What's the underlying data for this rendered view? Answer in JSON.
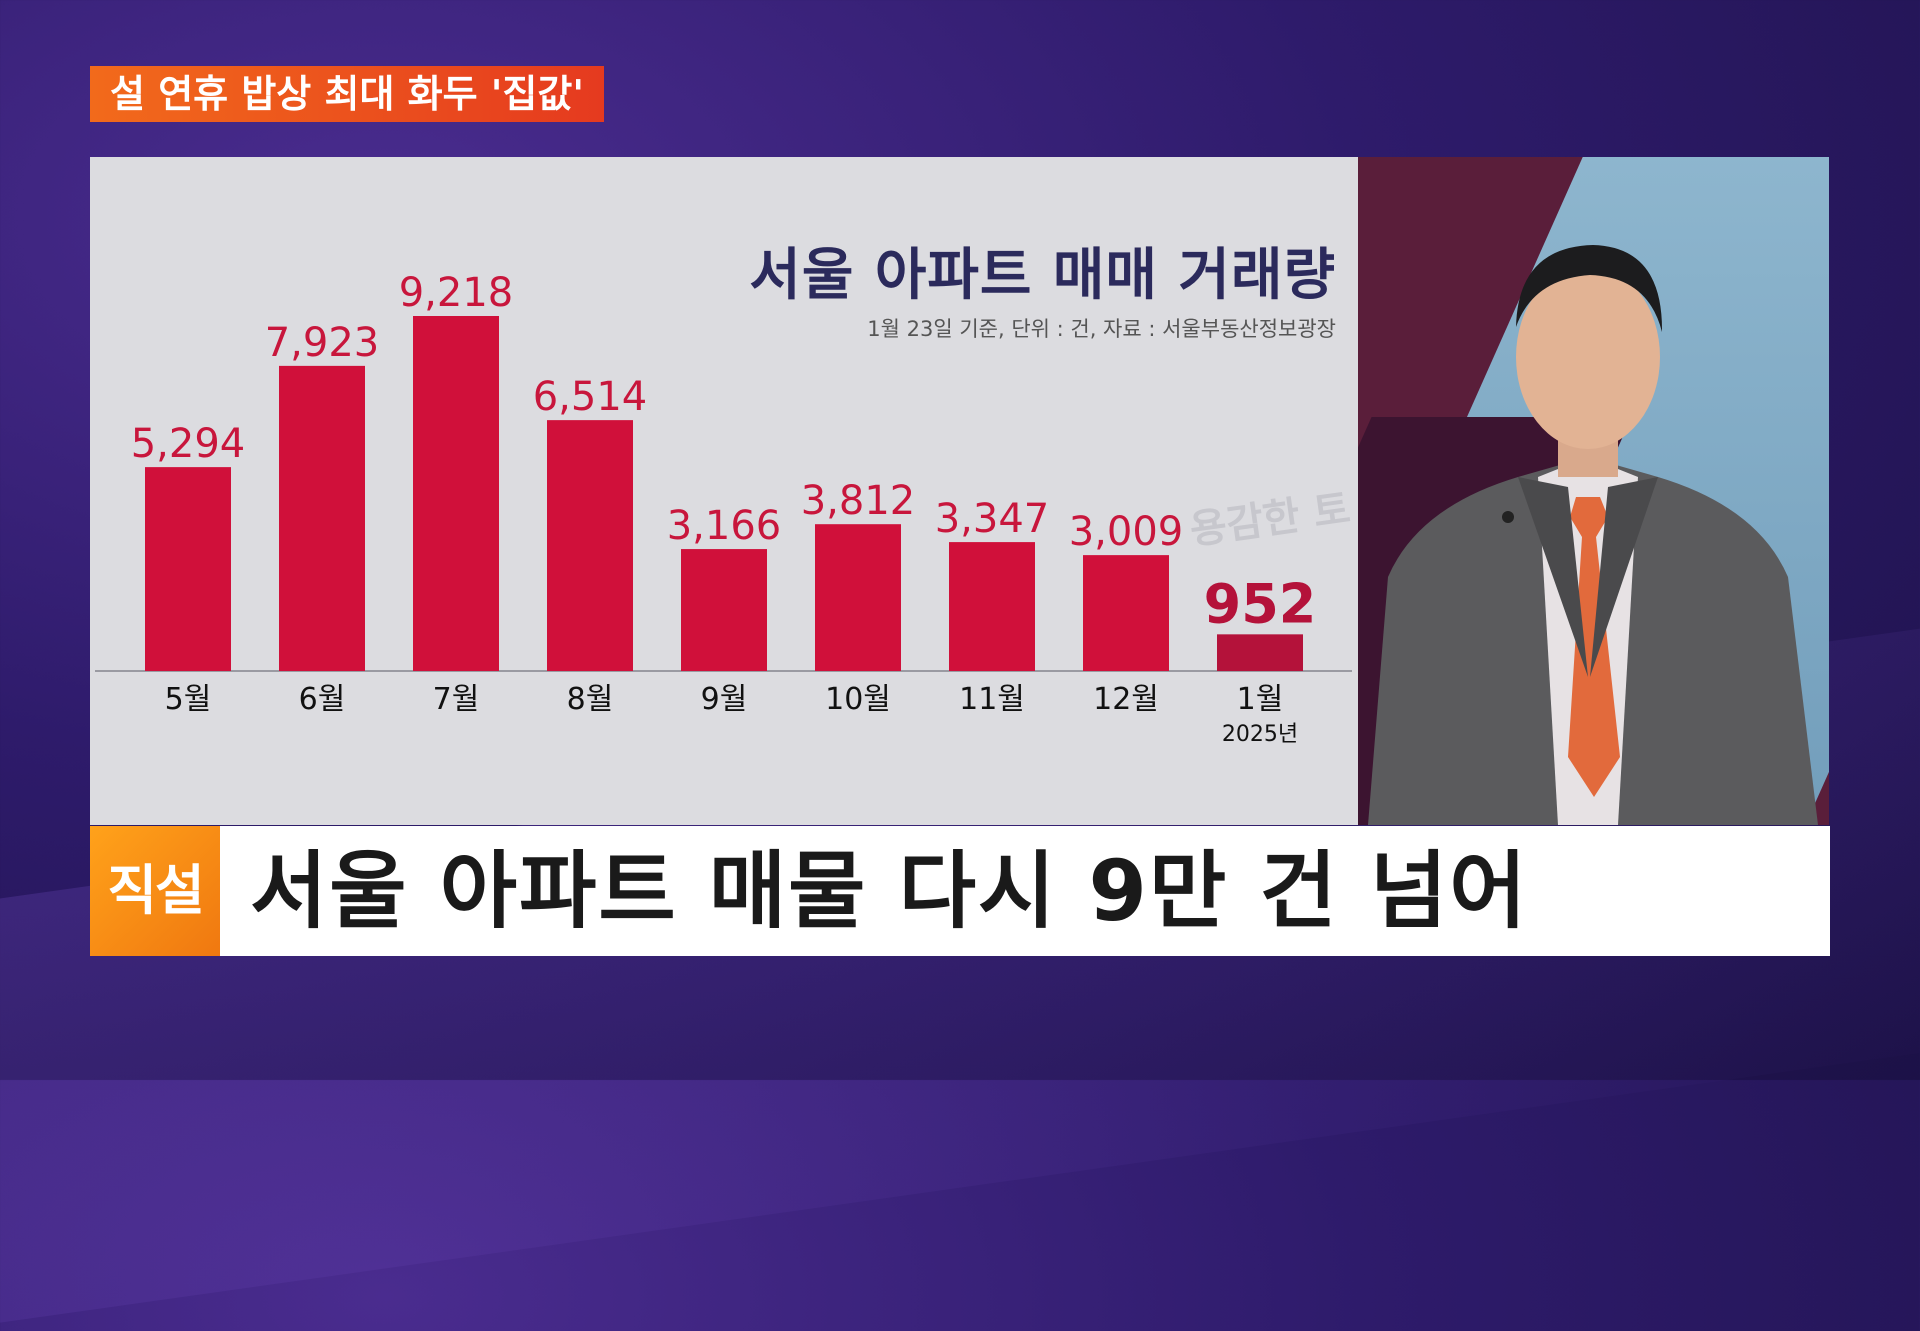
{
  "topic_tag": "설 연휴 밥상 최대 화두 '집값'",
  "chart_data": {
    "type": "bar",
    "title": "서울 아파트 매매 거래량",
    "note": "1월 23일 기준, 단위 : 건, 자료 : 서울부동산정보광장",
    "categories": [
      "5월",
      "6월",
      "7월",
      "8월",
      "9월",
      "10월",
      "11월",
      "12월",
      "1월"
    ],
    "values": [
      5294,
      7923,
      9218,
      6514,
      3166,
      3812,
      3347,
      3009,
      952
    ],
    "value_labels": [
      "5,294",
      "7,923",
      "9,218",
      "6,514",
      "3,166",
      "3,812",
      "3,347",
      "3,009",
      "952"
    ],
    "year_note": "2025년",
    "bar_color": "#d0103a",
    "ylim": [
      0,
      9218
    ]
  },
  "watermark": "용감한 토",
  "banner": {
    "logo": "직설",
    "headline": "서울 아파트 매물 다시 9만 건 넘어"
  },
  "colors": {
    "accent_orange": "#f26a1b",
    "title_navy": "#2b2a5c",
    "bar_red": "#d0103a"
  }
}
